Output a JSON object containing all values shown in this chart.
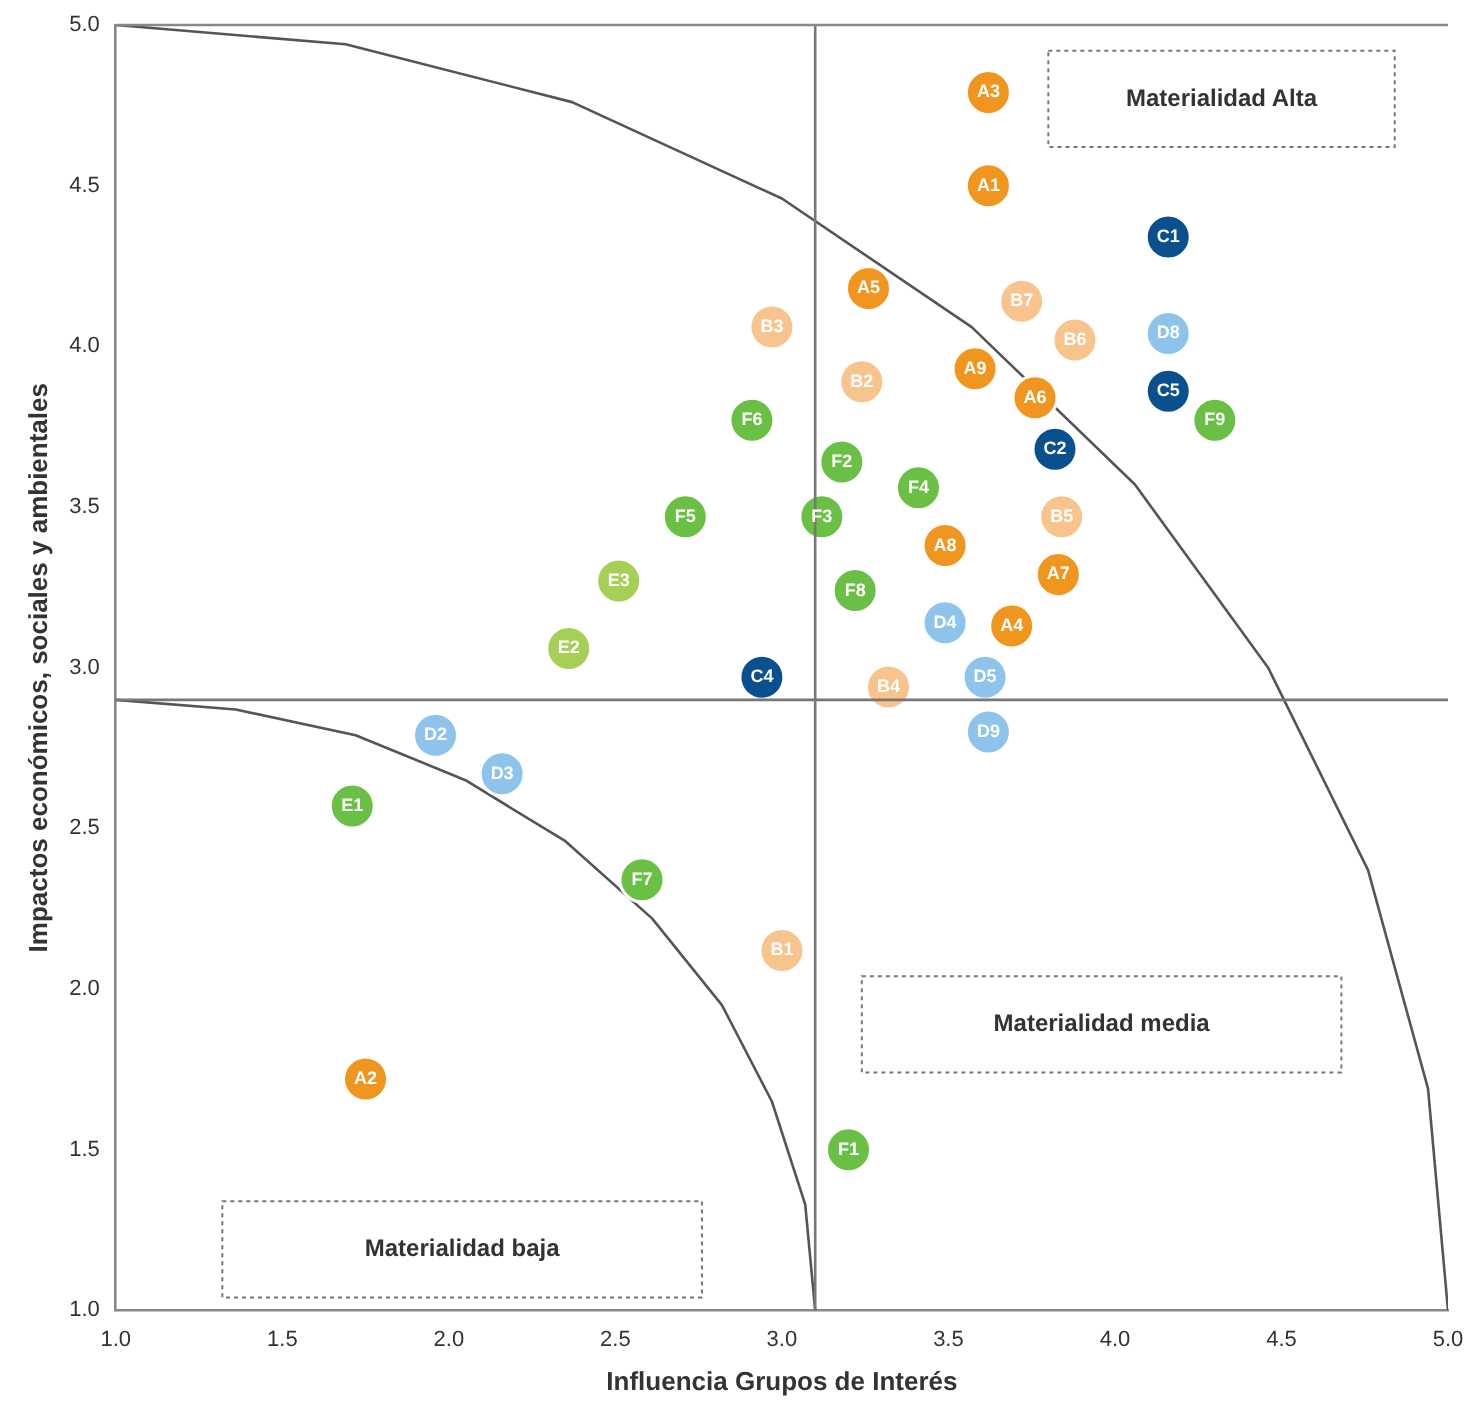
{
  "chart_data": {
    "type": "scatter",
    "xlabel": "Influencia Grupos de Interés",
    "ylabel": "Impactos económicos, sociales y ambientales",
    "xlim": [
      1,
      5
    ],
    "ylim": [
      1,
      5
    ],
    "xticks": [
      {
        "value": 1,
        "label": "1.0"
      },
      {
        "value": 1.5,
        "label": "1.5"
      },
      {
        "value": 2,
        "label": "2.0"
      },
      {
        "value": 2.5,
        "label": "2.5"
      },
      {
        "value": 3,
        "label": "3.0"
      },
      {
        "value": 3.5,
        "label": "3.5"
      },
      {
        "value": 4,
        "label": "4.0"
      },
      {
        "value": 4.5,
        "label": "4.5"
      },
      {
        "value": 5,
        "label": "5.0"
      }
    ],
    "yticks": [
      {
        "value": 1,
        "label": "1.0"
      },
      {
        "value": 1.5,
        "label": "1.5"
      },
      {
        "value": 2,
        "label": "2.0"
      },
      {
        "value": 2.5,
        "label": "2.5"
      },
      {
        "value": 3,
        "label": "3.0"
      },
      {
        "value": 3.5,
        "label": "3.5"
      },
      {
        "value": 4,
        "label": "4.0"
      },
      {
        "value": 4.5,
        "label": "4.5"
      },
      {
        "value": 5,
        "label": "5.0"
      }
    ],
    "grid": false,
    "legend": false,
    "marker": "circle",
    "ref_lines": [
      {
        "axis": "x",
        "value": 3.1,
        "color": "#777777"
      },
      {
        "axis": "y",
        "value": 2.9,
        "color": "#777777"
      }
    ],
    "annotations": [
      "Materialidad Alta",
      "Materialidad media",
      "Materialidad baja"
    ],
    "series": [
      {
        "color": "#f0961e",
        "x": [
          3.62,
          3.62,
          3.26,
          3.58,
          3.76,
          3.49,
          3.83,
          3.69,
          1.75
        ],
        "values": [
          4.79,
          4.5,
          4.18,
          3.93,
          3.84,
          3.38,
          3.29,
          3.13,
          1.72
        ],
        "value_labels": [
          "A3",
          "A1",
          "A5",
          "A9",
          "A6",
          "A8",
          "A7",
          "A4",
          "A2"
        ]
      },
      {
        "color": "#f8c48e",
        "x": [
          3.72,
          2.97,
          3.88,
          3.24,
          3.84,
          3.32,
          3.0
        ],
        "values": [
          4.14,
          4.06,
          4.02,
          3.89,
          3.47,
          2.94,
          2.12
        ],
        "value_labels": [
          "B7",
          "B3",
          "B6",
          "B2",
          "B5",
          "B4",
          "B1"
        ]
      },
      {
        "color": "#0a4f8e",
        "x": [
          4.16,
          4.16,
          3.82,
          2.94
        ],
        "values": [
          4.34,
          3.86,
          3.68,
          2.97
        ],
        "value_labels": [
          "C1",
          "C5",
          "C2",
          "C4"
        ]
      },
      {
        "color": "#8ec3ec",
        "x": [
          4.16,
          3.49,
          3.61,
          3.62,
          1.96,
          2.16
        ],
        "values": [
          4.04,
          3.14,
          2.97,
          2.8,
          2.79,
          2.67
        ],
        "value_labels": [
          "D8",
          "D4",
          "D5",
          "D9",
          "D2",
          "D3"
        ]
      },
      {
        "color": "#6abf45",
        "x": [
          4.3,
          2.91,
          3.18,
          3.41,
          3.12,
          2.71,
          3.22,
          1.71,
          2.58,
          3.2
        ],
        "values": [
          3.77,
          3.77,
          3.64,
          3.56,
          3.47,
          3.47,
          3.24,
          2.57,
          2.34,
          1.5
        ],
        "value_labels": [
          "F9",
          "F6",
          "F2",
          "F4",
          "F3",
          "F5",
          "F8",
          "E1",
          "F7",
          "F1"
        ]
      },
      {
        "color": "#a6cf55",
        "x": [
          2.51,
          2.36
        ],
        "values": [
          3.27,
          3.06
        ],
        "value_labels": [
          "E3",
          "E2"
        ]
      },
      {
        "type": "line",
        "color": "#555555",
        "marker": "none",
        "x": [
          1,
          1.69,
          2.37,
          3,
          3.57,
          4.06,
          4.46,
          4.76,
          4.94,
          5
        ],
        "values": [
          5,
          4.94,
          4.76,
          4.46,
          4.06,
          3.57,
          3,
          2.37,
          1.69,
          1
        ]
      },
      {
        "type": "line",
        "color": "#555555",
        "marker": "none",
        "x": [
          1,
          1.36,
          1.72,
          2.05,
          2.35,
          2.61,
          2.82,
          2.97,
          3.07,
          3.1
        ],
        "values": [
          2.9,
          2.87,
          2.79,
          2.65,
          2.46,
          2.22,
          1.95,
          1.65,
          1.33,
          1
        ]
      }
    ]
  }
}
